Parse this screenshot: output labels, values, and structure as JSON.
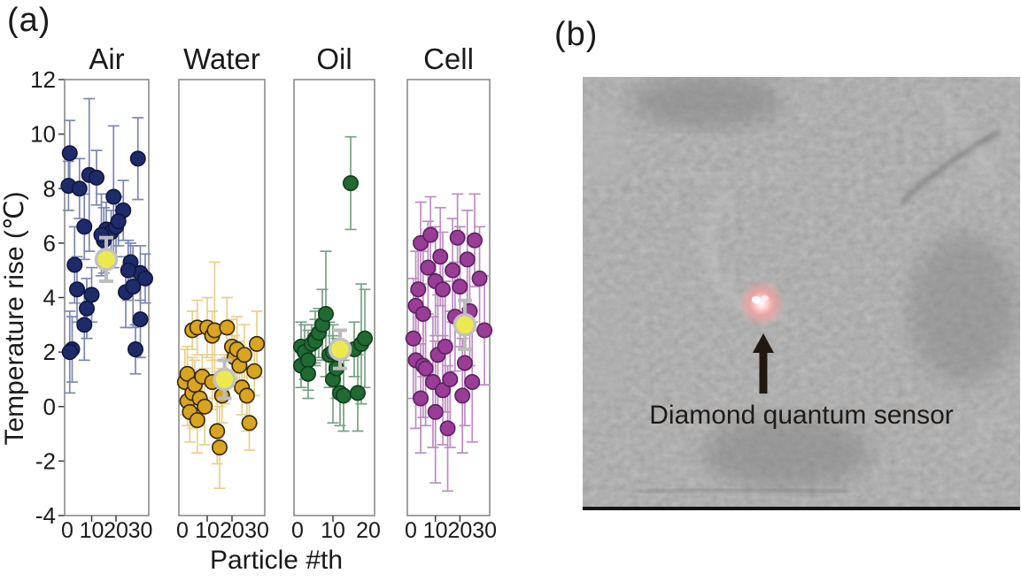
{
  "panel_a_label": "(a)",
  "panel_b_label": "(b)",
  "chart_data": {
    "type": "scatter",
    "xlabel": "Particle #th",
    "ylabel": "Temperature rise (℃)",
    "ylim": [
      -4,
      12
    ],
    "yticks": [
      12,
      10,
      8,
      6,
      4,
      2,
      0,
      -2,
      -4
    ],
    "grid": false,
    "legend": "none",
    "mean_marker": {
      "fill": "#ebe94f",
      "ring": "#c2c2c2",
      "errorbar_color": "#bdbdbd"
    },
    "panels": [
      {
        "title": "Air",
        "xticks": [
          0,
          10,
          20,
          30
        ],
        "xlim": [
          0,
          33
        ],
        "marker_color": "#1e2b6b",
        "marker_edge": "#10173d",
        "errorbar_color": "#7d87b0",
        "mean_x": 16,
        "mean": 5.4,
        "mean_err": 0.8,
        "points": [
          [
            1,
            9.3,
            1.2
          ],
          [
            0.5,
            8.1,
            0.9
          ],
          [
            5,
            8.0,
            1.1
          ],
          [
            9,
            8.5,
            2.8
          ],
          [
            12,
            8.4,
            1.0
          ],
          [
            29,
            9.1,
            1.5
          ],
          [
            19,
            7.7,
            2.6
          ],
          [
            23,
            7.2,
            1.1
          ],
          [
            7,
            6.6,
            1.2
          ],
          [
            16,
            6.5,
            1.0
          ],
          [
            18,
            6.4,
            0.8
          ],
          [
            20,
            6.6,
            1.1
          ],
          [
            21,
            6.8,
            0.9
          ],
          [
            15,
            6.1,
            1.2
          ],
          [
            14,
            6.3,
            1.5
          ],
          [
            3,
            5.2,
            1.4
          ],
          [
            26,
            5.3,
            0.7
          ],
          [
            30,
            4.9,
            1.0
          ],
          [
            32,
            4.7,
            0.9
          ],
          [
            4,
            4.3,
            1.2
          ],
          [
            10,
            4.1,
            1.0
          ],
          [
            24,
            4.2,
            1.3
          ],
          [
            27,
            4.4,
            1.5
          ],
          [
            8,
            3.6,
            1.1
          ],
          [
            7,
            3.0,
            1.3
          ],
          [
            30,
            3.2,
            1.4
          ],
          [
            2,
            2.1,
            1.2
          ],
          [
            1,
            2.0,
            1.5
          ],
          [
            28,
            2.1,
            0.9
          ],
          [
            25,
            5.0,
            1.1
          ]
        ]
      },
      {
        "title": "Water",
        "xticks": [
          0,
          10,
          20,
          30
        ],
        "xlim": [
          0,
          33
        ],
        "marker_color": "#d9a41f",
        "marker_edge": "#33270a",
        "errorbar_color": "#e7d08c",
        "mean_x": 17,
        "mean": 1.0,
        "mean_err": 0.7,
        "points": [
          [
            1,
            0.9,
            1.2
          ],
          [
            2,
            1.2,
            1.0
          ],
          [
            2,
            0.2,
            0.9
          ],
          [
            3,
            -0.2,
            1.1
          ],
          [
            4,
            2.8,
            0.7
          ],
          [
            4,
            0.5,
            1.3
          ],
          [
            6,
            2.9,
            1.0
          ],
          [
            5,
            0.8,
            0.9
          ],
          [
            6,
            -0.5,
            1.2
          ],
          [
            7,
            0.3,
            1.0
          ],
          [
            8,
            1.1,
            0.8
          ],
          [
            9,
            0.0,
            1.4
          ],
          [
            10,
            2.9,
            1.1
          ],
          [
            12,
            2.6,
            0.9
          ],
          [
            12,
            0.9,
            1.0
          ],
          [
            13,
            2.8,
            2.5
          ],
          [
            14,
            -0.9,
            1.2
          ],
          [
            15,
            -1.5,
            1.5
          ],
          [
            16,
            0.4,
            1.0
          ],
          [
            17,
            1.0,
            0.9
          ],
          [
            18,
            2.9,
            1.1
          ],
          [
            20,
            2.2,
            1.0
          ],
          [
            21,
            1.8,
            0.8
          ],
          [
            22,
            2.1,
            1.2
          ],
          [
            23,
            1.5,
            0.9
          ],
          [
            24,
            0.7,
            1.0
          ],
          [
            25,
            1.9,
            1.1
          ],
          [
            26,
            0.4,
            1.3
          ],
          [
            27,
            -0.6,
            1.0
          ],
          [
            29,
            1.3,
            0.9
          ],
          [
            30,
            2.3,
            1.2
          ]
        ]
      },
      {
        "title": "Oil",
        "xticks": [
          0,
          10,
          20
        ],
        "xlim": [
          0,
          22
        ],
        "marker_color": "#1f6b33",
        "marker_edge": "#123c1e",
        "errorbar_color": "#79a183",
        "mean_x": 12,
        "mean": 2.1,
        "mean_err": 0.7,
        "points": [
          [
            1,
            2.2,
            0.9
          ],
          [
            1,
            1.5,
            0.8
          ],
          [
            2,
            2.0,
            1.0
          ],
          [
            3,
            1.7,
            1.1
          ],
          [
            3,
            1.2,
            0.9
          ],
          [
            4,
            2.3,
            0.7
          ],
          [
            5,
            2.5,
            1.0
          ],
          [
            5,
            2.4,
            0.8
          ],
          [
            6,
            2.7,
            0.9
          ],
          [
            7,
            3.0,
            1.3
          ],
          [
            8,
            3.4,
            2.3
          ],
          [
            9,
            1.9,
            1.2
          ],
          [
            10,
            2.0,
            1.0
          ],
          [
            10,
            1.0,
            1.6
          ],
          [
            11,
            1.4,
            1.1
          ],
          [
            12,
            0.5,
            1.2
          ],
          [
            13,
            0.4,
            1.3
          ],
          [
            15,
            8.2,
            1.7
          ],
          [
            16,
            2.1,
            1.0
          ],
          [
            17,
            0.5,
            1.4
          ],
          [
            18,
            2.3,
            2.2
          ],
          [
            19,
            2.5,
            1.8
          ]
        ]
      },
      {
        "title": "Cell",
        "xticks": [
          0,
          10,
          20,
          30
        ],
        "xlim": [
          0,
          33
        ],
        "marker_color": "#993d97",
        "marker_edge": "#5c2060",
        "errorbar_color": "#bd8cc1",
        "mean_x": 22,
        "mean": 3.0,
        "mean_err": 0.9,
        "points": [
          [
            1,
            2.5,
            2.2
          ],
          [
            2,
            3.7,
            2.0
          ],
          [
            2,
            1.7,
            2.5
          ],
          [
            3,
            4.3,
            1.8
          ],
          [
            4,
            6.0,
            1.5
          ],
          [
            4,
            0.3,
            2.0
          ],
          [
            5,
            3.4,
            2.3
          ],
          [
            5,
            1.5,
            1.9
          ],
          [
            6,
            1.4,
            2.1
          ],
          [
            7,
            5.1,
            1.7
          ],
          [
            8,
            6.3,
            1.4
          ],
          [
            9,
            0.9,
            2.4
          ],
          [
            10,
            4.6,
            2.0
          ],
          [
            10,
            -0.2,
            2.6
          ],
          [
            11,
            1.9,
            2.2
          ],
          [
            12,
            5.5,
            1.8
          ],
          [
            13,
            4.3,
            2.1
          ],
          [
            13,
            0.6,
            2.0
          ],
          [
            14,
            2.2,
            2.4
          ],
          [
            15,
            -0.8,
            2.3
          ],
          [
            16,
            1.0,
            2.5
          ],
          [
            17,
            5.0,
            1.9
          ],
          [
            18,
            3.3,
            2.0
          ],
          [
            19,
            6.2,
            1.6
          ],
          [
            20,
            4.4,
            2.2
          ],
          [
            21,
            0.4,
            2.1
          ],
          [
            22,
            1.6,
            2.3
          ],
          [
            23,
            5.4,
            1.8
          ],
          [
            24,
            3.5,
            2.0
          ],
          [
            25,
            0.9,
            2.2
          ],
          [
            26,
            6.1,
            1.7
          ],
          [
            28,
            4.7,
            1.9
          ],
          [
            30,
            2.8,
            2.0
          ]
        ]
      }
    ]
  },
  "micrograph": {
    "caption": "Diamond quantum sensor",
    "background_color": "#8e8e8e",
    "spot_color": "#f2a0a0",
    "arrow_color": "#201812"
  }
}
